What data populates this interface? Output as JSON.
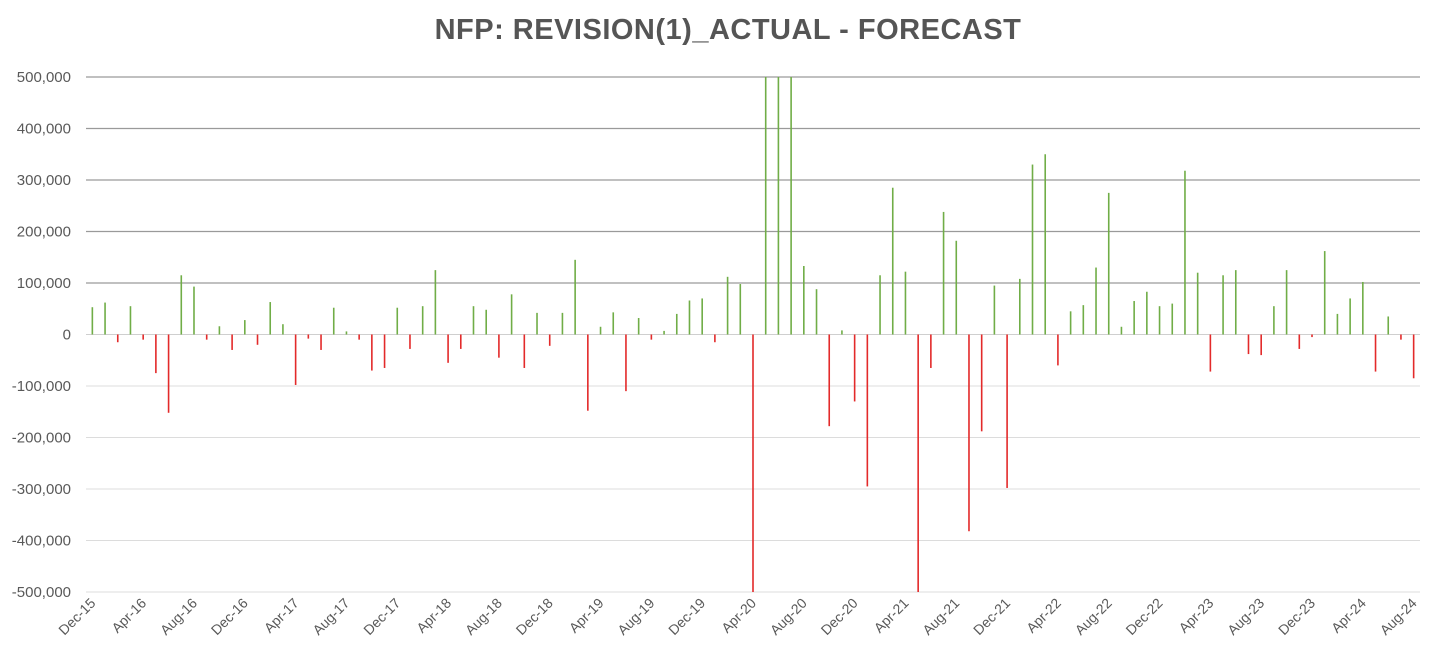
{
  "chart_data": {
    "type": "bar",
    "title": "NFP: REVISION(1)_ACTUAL - FORECAST",
    "xlabel": "",
    "ylabel": "",
    "ylim": [
      -500000,
      500000
    ],
    "yticks": [
      500000,
      400000,
      300000,
      200000,
      100000,
      0,
      -100000,
      -200000,
      -300000,
      -400000,
      -500000
    ],
    "ytick_labels": [
      "500,000",
      "400,000",
      "300,000",
      "200,000",
      "100,000",
      "0",
      "-100,000",
      "-200,000",
      "-300,000",
      "-400,000",
      "-500,000"
    ],
    "grid": true,
    "positive_color": "#70AD47",
    "negative_color": "#E32A2A",
    "xtick_labels": [
      {
        "label": "Dec-15",
        "index": 0
      },
      {
        "label": "Apr-16",
        "index": 4
      },
      {
        "label": "Aug-16",
        "index": 8
      },
      {
        "label": "Dec-16",
        "index": 12
      },
      {
        "label": "Apr-17",
        "index": 16
      },
      {
        "label": "Aug-17",
        "index": 20
      },
      {
        "label": "Dec-17",
        "index": 24
      },
      {
        "label": "Apr-18",
        "index": 28
      },
      {
        "label": "Aug-18",
        "index": 32
      },
      {
        "label": "Dec-18",
        "index": 36
      },
      {
        "label": "Apr-19",
        "index": 40
      },
      {
        "label": "Aug-19",
        "index": 44
      },
      {
        "label": "Dec-19",
        "index": 48
      },
      {
        "label": "Apr-20",
        "index": 52
      },
      {
        "label": "Aug-20",
        "index": 56
      },
      {
        "label": "Dec-20",
        "index": 60
      },
      {
        "label": "Apr-21",
        "index": 64
      },
      {
        "label": "Aug-21",
        "index": 68
      },
      {
        "label": "Dec-21",
        "index": 72
      },
      {
        "label": "Apr-22",
        "index": 76
      },
      {
        "label": "Aug-22",
        "index": 80
      },
      {
        "label": "Dec-22",
        "index": 84
      },
      {
        "label": "Apr-23",
        "index": 88
      },
      {
        "label": "Aug-23",
        "index": 92
      },
      {
        "label": "Dec-23",
        "index": 96
      },
      {
        "label": "Apr-24",
        "index": 100
      },
      {
        "label": "Aug-24",
        "index": 104
      }
    ],
    "values": [
      53000,
      62000,
      -15000,
      55000,
      -10000,
      -75000,
      -152000,
      115000,
      93000,
      -10000,
      16000,
      -30000,
      28000,
      -20000,
      63000,
      20000,
      -98000,
      -8000,
      -30000,
      52000,
      6000,
      -10000,
      -70000,
      -65000,
      52000,
      -28000,
      55000,
      125000,
      -55000,
      -28000,
      55000,
      48000,
      -45000,
      78000,
      -65000,
      42000,
      -22000,
      42000,
      145000,
      -148000,
      15000,
      43000,
      -110000,
      32000,
      -10000,
      7000,
      40000,
      66000,
      70000,
      -15000,
      112000,
      98000,
      -500000,
      500000,
      500000,
      500000,
      133000,
      88000,
      -178000,
      8000,
      -130000,
      -295000,
      115000,
      285000,
      122000,
      -500000,
      -65000,
      238000,
      182000,
      -382000,
      -188000,
      95000,
      -298000,
      108000,
      330000,
      350000,
      -60000,
      45000,
      57000,
      130000,
      275000,
      15000,
      65000,
      83000,
      55000,
      60000,
      318000,
      120000,
      -72000,
      115000,
      125000,
      -38000,
      -40000,
      55000,
      125000,
      -28000,
      -5000,
      162000,
      40000,
      70000,
      102000,
      -72000,
      35000,
      -10000,
      -85000
    ]
  }
}
